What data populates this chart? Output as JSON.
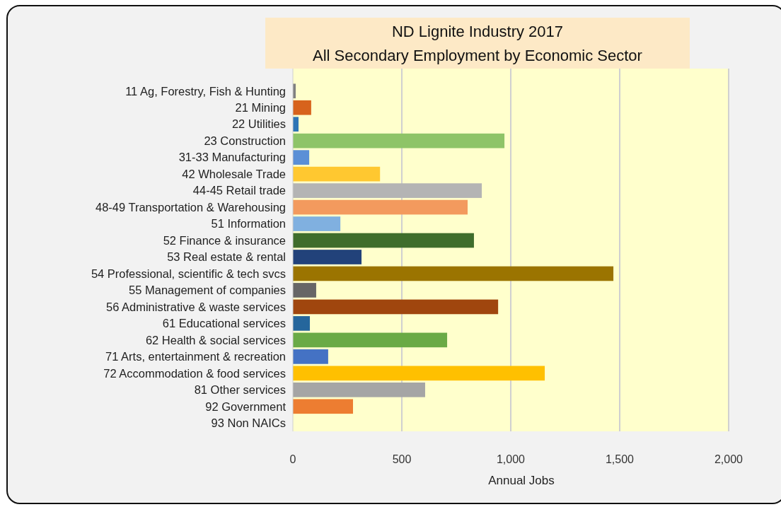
{
  "chart_data": {
    "type": "bar",
    "orientation": "horizontal",
    "title": "ND Lignite Industry 2017",
    "subtitle": "All Secondary Employment by Economic Sector",
    "xlabel": "Annual Jobs",
    "categories": [
      "11 Ag, Forestry, Fish & Hunting",
      "21 Mining",
      "22 Utilities",
      "23 Construction",
      "31-33 Manufacturing",
      "42 Wholesale Trade",
      "44-45 Retail trade",
      "48-49 Transportation & Warehousing",
      "51 Information",
      "52 Finance & insurance",
      "53 Real estate & rental",
      "54 Professional, scientific & tech svcs",
      "55 Management of companies",
      "56 Administrative & waste services",
      "61 Educational services",
      "62 Health & social services",
      "71 Arts, entertainment & recreation",
      "72 Accommodation & food services",
      "81 Other services",
      "92 Government",
      "93 Non NAICs"
    ],
    "values": [
      13,
      84,
      26,
      971,
      75,
      400,
      867,
      802,
      218,
      831,
      315,
      1471,
      107,
      942,
      78,
      708,
      162,
      1156,
      607,
      276,
      0
    ],
    "colors": [
      "#808080",
      "#d7631c",
      "#2e75b6",
      "#8ec468",
      "#5b8fd6",
      "#ffc830",
      "#b4b4b4",
      "#f39a5e",
      "#80b0e0",
      "#3f6d2c",
      "#22427a",
      "#9b7400",
      "#666666",
      "#a0460e",
      "#25669c",
      "#6aaa46",
      "#4472c4",
      "#ffc000",
      "#a5a5a5",
      "#ed7d31",
      "#999999"
    ],
    "xlim": [
      0,
      2000
    ],
    "xticks": [
      0,
      500,
      {
        "value": 1000,
        "label": "1,000"
      },
      {
        "value": 1500,
        "label": "1,500"
      },
      {
        "value": 2000,
        "label": "2,000"
      }
    ],
    "grid": "x"
  }
}
